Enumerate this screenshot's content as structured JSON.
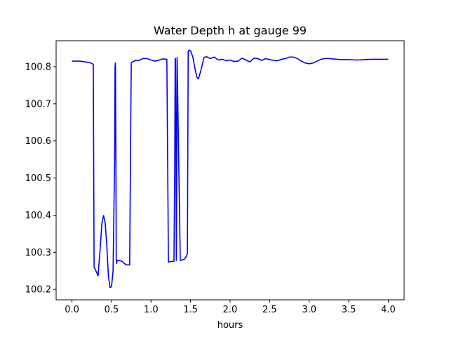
{
  "chart_data": {
    "type": "line",
    "title": "Water Depth h at gauge 99",
    "xlabel": "hours",
    "ylabel": "",
    "xlim": [
      -0.2,
      4.2
    ],
    "ylim": [
      100.172,
      100.87
    ],
    "grid": false,
    "legend": "none",
    "x_ticks": [
      0.0,
      0.5,
      1.0,
      1.5,
      2.0,
      2.5,
      3.0,
      3.5,
      4.0
    ],
    "x_tick_labels": [
      "0.0",
      "0.5",
      "1.0",
      "1.5",
      "2.0",
      "2.5",
      "3.0",
      "3.5",
      "4.0"
    ],
    "y_ticks": [
      100.2,
      100.3,
      100.4,
      100.5,
      100.6,
      100.7,
      100.8
    ],
    "y_tick_labels": [
      "100.2",
      "100.3",
      "100.4",
      "100.5",
      "100.6",
      "100.7",
      "100.8"
    ],
    "colors": {
      "line": "#0000ff",
      "axes": "#000000",
      "background": "#ffffff"
    },
    "series": [
      {
        "x": [
          0.0,
          0.1,
          0.2,
          0.25,
          0.27,
          0.28,
          0.29,
          0.33,
          0.35,
          0.38,
          0.4,
          0.42,
          0.44,
          0.46,
          0.48,
          0.5,
          0.52,
          0.54,
          0.545,
          0.55,
          0.556,
          0.56,
          0.565,
          0.57,
          0.58,
          0.6,
          0.64,
          0.66,
          0.69,
          0.73,
          0.74,
          0.75,
          0.76,
          0.8,
          0.85,
          0.9,
          0.95,
          1.0,
          1.05,
          1.1,
          1.15,
          1.2,
          1.21,
          1.22,
          1.25,
          1.29,
          1.3,
          1.305,
          1.31,
          1.315,
          1.32,
          1.325,
          1.33,
          1.37,
          1.42,
          1.45,
          1.46,
          1.47,
          1.48,
          1.5,
          1.53,
          1.56,
          1.58,
          1.6,
          1.63,
          1.67,
          1.7,
          1.75,
          1.8,
          1.85,
          1.9,
          1.95,
          2.0,
          2.05,
          2.1,
          2.15,
          2.2,
          2.25,
          2.3,
          2.35,
          2.4,
          2.45,
          2.5,
          2.55,
          2.6,
          2.65,
          2.7,
          2.75,
          2.8,
          2.85,
          2.9,
          2.95,
          3.0,
          3.05,
          3.1,
          3.15,
          3.2,
          3.25,
          3.3,
          3.35,
          3.4,
          3.5,
          3.6,
          3.7,
          3.8,
          3.9,
          4.0
        ],
        "values": [
          100.815,
          100.815,
          100.812,
          100.809,
          100.806,
          100.26,
          100.256,
          100.237,
          100.29,
          100.38,
          100.399,
          100.38,
          100.32,
          100.24,
          100.205,
          100.207,
          100.25,
          100.55,
          100.8,
          100.81,
          100.55,
          100.28,
          100.27,
          100.276,
          100.278,
          100.278,
          100.275,
          100.27,
          100.266,
          100.266,
          100.55,
          100.81,
          100.812,
          100.817,
          100.817,
          100.822,
          100.822,
          100.818,
          100.815,
          100.818,
          100.821,
          100.82,
          100.55,
          100.274,
          100.275,
          100.276,
          100.55,
          100.82,
          100.822,
          100.6,
          100.278,
          100.5,
          100.825,
          100.278,
          100.281,
          100.29,
          100.298,
          100.841,
          100.845,
          100.843,
          100.825,
          100.79,
          100.772,
          100.767,
          100.79,
          100.825,
          100.827,
          100.822,
          100.826,
          100.818,
          100.82,
          100.816,
          100.818,
          100.814,
          100.815,
          100.823,
          100.818,
          100.813,
          100.823,
          100.822,
          100.817,
          100.822,
          100.819,
          100.817,
          100.816,
          100.82,
          100.822,
          100.826,
          100.826,
          100.822,
          100.815,
          100.81,
          100.808,
          100.81,
          100.815,
          100.82,
          100.822,
          100.822,
          100.821,
          100.82,
          100.819,
          100.819,
          100.818,
          100.819,
          100.82,
          100.82,
          100.82
        ]
      }
    ]
  }
}
